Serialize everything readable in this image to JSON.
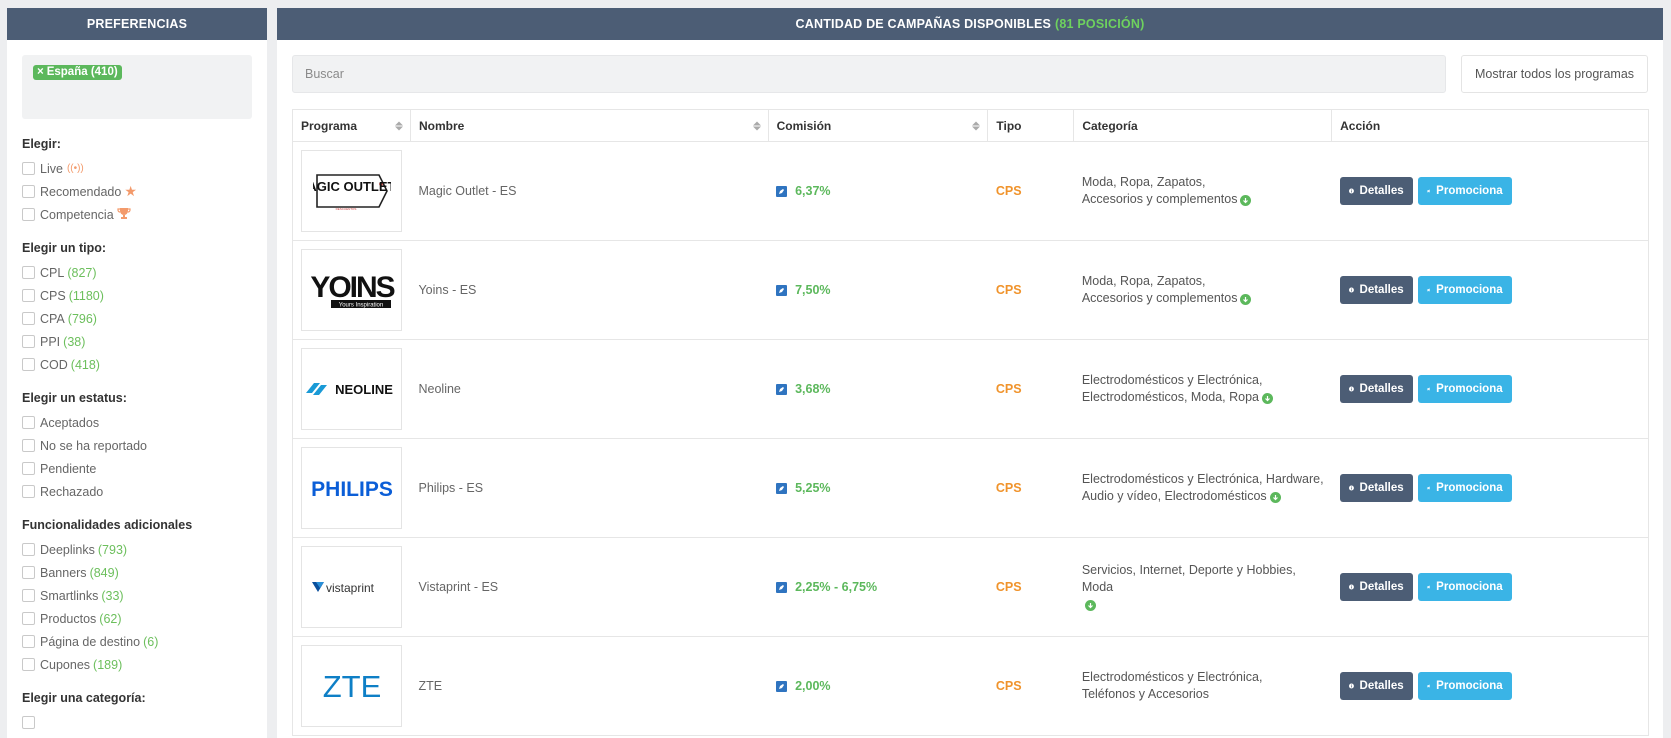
{
  "sidebar": {
    "header": "PREFERENCIAS",
    "selected_tag": "España (410)",
    "tag_remove": "×",
    "groups": [
      {
        "title": "Elegir:",
        "items": [
          {
            "label": "Live",
            "count": "",
            "icon": "live-icon"
          },
          {
            "label": "Recomendado",
            "count": "",
            "icon": "star-icon"
          },
          {
            "label": "Competencia",
            "count": "",
            "icon": "trophy-icon"
          }
        ]
      },
      {
        "title": "Elegir un tipo:",
        "items": [
          {
            "label": "CPL",
            "count": "(827)"
          },
          {
            "label": "CPS",
            "count": "(1180)"
          },
          {
            "label": "CPA",
            "count": "(796)"
          },
          {
            "label": "PPI",
            "count": "(38)"
          },
          {
            "label": "COD",
            "count": "(418)"
          }
        ]
      },
      {
        "title": "Elegir un estatus:",
        "items": [
          {
            "label": "Aceptados",
            "count": ""
          },
          {
            "label": "No se ha reportado",
            "count": ""
          },
          {
            "label": "Pendiente",
            "count": ""
          },
          {
            "label": "Rechazado",
            "count": ""
          }
        ]
      },
      {
        "title": "Funcionalidades adicionales",
        "items": [
          {
            "label": "Deeplinks",
            "count": "(793)"
          },
          {
            "label": "Banners",
            "count": "(849)"
          },
          {
            "label": "Smartlinks",
            "count": "(33)"
          },
          {
            "label": "Productos",
            "count": "(62)"
          },
          {
            "label": "Página de destino",
            "count": "(6)"
          },
          {
            "label": "Cupones ",
            "count": "(189)"
          }
        ]
      },
      {
        "title": "Elegir una categoría:",
        "items": []
      }
    ]
  },
  "main": {
    "header_title": "CANTIDAD DE CAMPAÑAS DISPONIBLES",
    "header_accent": "(81 POSICIÓN)",
    "search_placeholder": "Buscar",
    "show_all_label": "Mostrar todos los programas",
    "columns": {
      "programa": "Programa",
      "nombre": "Nombre",
      "comision": "Comisión",
      "tipo": "Tipo",
      "categoria": "Categoría",
      "accion": "Acción"
    },
    "details_label": "Detalles",
    "promote_label": "Promociona",
    "rows": [
      {
        "logo": "MAGIC OUTLET",
        "name": "Magic Outlet - ES",
        "commission": "6,37%",
        "type": "CPS",
        "category_line1": "Moda, Ropa, Zapatos,",
        "category_line2": "Accesorios y complementos",
        "has_more": true
      },
      {
        "logo": "YOINS",
        "name": "Yoins - ES",
        "commission": "7,50%",
        "type": "CPS",
        "category_line1": "Moda, Ropa, Zapatos,",
        "category_line2": "Accesorios y complementos",
        "has_more": true
      },
      {
        "logo": "NEOLINE",
        "name": "Neoline",
        "commission": "3,68%",
        "type": "CPS",
        "category_line1": "Electrodomésticos y Electrónica,",
        "category_line2": "Electrodomésticos, Moda, Ropa",
        "has_more": true
      },
      {
        "logo": "PHILIPS",
        "name": "Philips - ES",
        "commission": "5,25%",
        "type": "CPS",
        "category_line1": "Electrodomésticos y Electrónica, Hardware,",
        "category_line2": "Audio y vídeo, Electrodomésticos",
        "has_more": true
      },
      {
        "logo": "vistaprint",
        "name": "Vistaprint - ES",
        "commission": "2,25% - 6,75%",
        "type": "CPS",
        "category_line1": "Servicios, Internet, Deporte y Hobbies, Moda",
        "category_line2": "",
        "has_more": true
      },
      {
        "logo": "ZTE",
        "name": "ZTE",
        "commission": "2,00%",
        "type": "CPS",
        "category_line1": "Electrodomésticos y Electrónica,",
        "category_line2": "Teléfonos y Accesorios",
        "has_more": false
      }
    ]
  }
}
